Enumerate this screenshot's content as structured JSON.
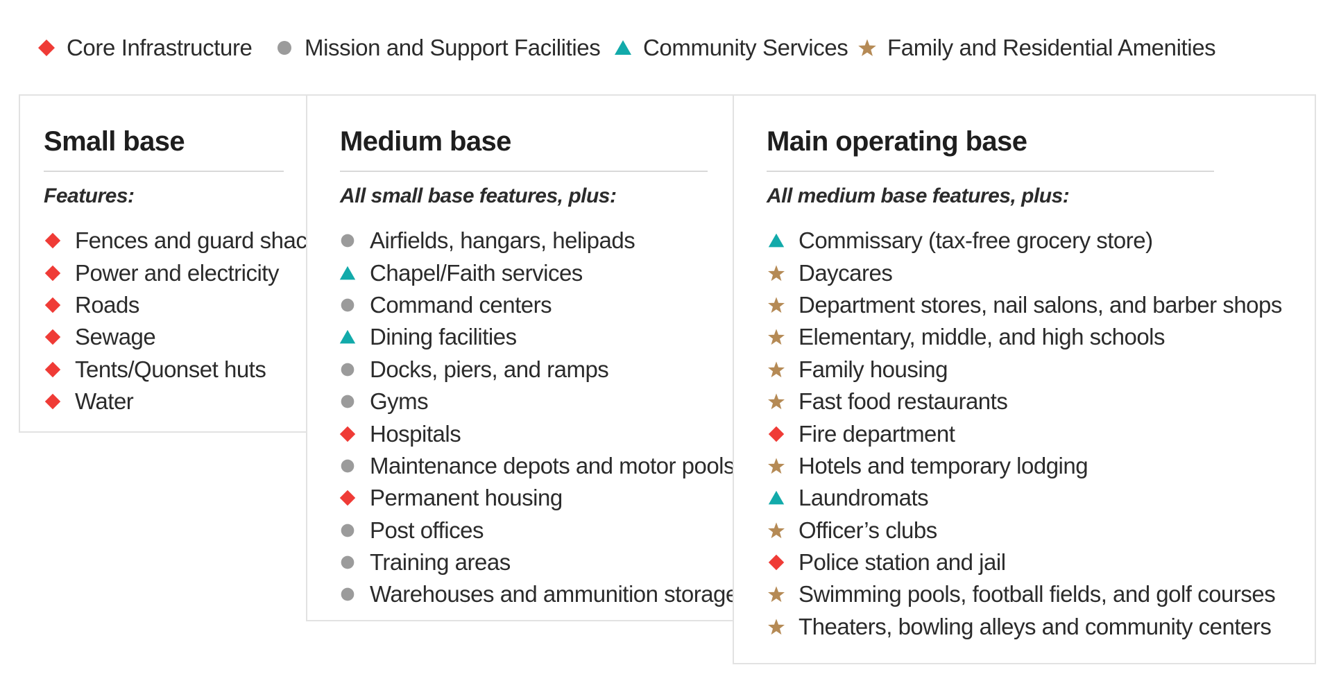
{
  "colors": {
    "core": "#ef3b36",
    "mission": "#9b9b9b",
    "community": "#12aaaa",
    "family": "#b58a55"
  },
  "legend": [
    {
      "label": "Core Infrastructure",
      "marker": "diamond",
      "category": "core"
    },
    {
      "label": "Mission and Support Facilities",
      "marker": "circle",
      "category": "mission"
    },
    {
      "label": "Community Services",
      "marker": "triangle",
      "category": "community"
    },
    {
      "label": "Family and Residential Amenities",
      "marker": "star",
      "category": "family"
    }
  ],
  "panels": {
    "small": {
      "title": "Small base",
      "subtitle": "Features:",
      "items": [
        {
          "text": "Fences and guard shacks",
          "category": "core"
        },
        {
          "text": "Power and electricity",
          "category": "core"
        },
        {
          "text": "Roads",
          "category": "core"
        },
        {
          "text": "Sewage",
          "category": "core"
        },
        {
          "text": "Tents/Quonset huts",
          "category": "core"
        },
        {
          "text": "Water",
          "category": "core"
        }
      ]
    },
    "medium": {
      "title": "Medium base",
      "subtitle": "All small base features, plus:",
      "items": [
        {
          "text": "Airfields, hangars, helipads",
          "category": "mission"
        },
        {
          "text": "Chapel/Faith services",
          "category": "community"
        },
        {
          "text": "Command centers",
          "category": "mission"
        },
        {
          "text": "Dining facilities",
          "category": "community"
        },
        {
          "text": "Docks, piers, and ramps",
          "category": "mission"
        },
        {
          "text": "Gyms",
          "category": "mission"
        },
        {
          "text": "Hospitals",
          "category": "core"
        },
        {
          "text": "Maintenance depots and motor pools",
          "category": "mission"
        },
        {
          "text": "Permanent housing",
          "category": "core"
        },
        {
          "text": "Post offices",
          "category": "mission"
        },
        {
          "text": "Training areas",
          "category": "mission"
        },
        {
          "text": "Warehouses and ammunition storage",
          "category": "mission"
        }
      ]
    },
    "main": {
      "title": "Main operating base",
      "subtitle": "All medium base features, plus:",
      "items": [
        {
          "text": "Commissary (tax-free grocery store)",
          "category": "community"
        },
        {
          "text": "Daycares",
          "category": "family"
        },
        {
          "text": "Department stores, nail salons, and barber shops",
          "category": "family"
        },
        {
          "text": "Elementary, middle, and high schools",
          "category": "family"
        },
        {
          "text": "Family housing",
          "category": "family"
        },
        {
          "text": "Fast food restaurants",
          "category": "family"
        },
        {
          "text": "Fire department",
          "category": "core"
        },
        {
          "text": "Hotels and temporary lodging",
          "category": "family"
        },
        {
          "text": "Laundromats",
          "category": "community"
        },
        {
          "text": "Officer’s clubs",
          "category": "family"
        },
        {
          "text": "Police station and jail",
          "category": "core"
        },
        {
          "text": "Swimming pools, football fields, and golf courses",
          "category": "family"
        },
        {
          "text": "Theaters, bowling alleys and community centers",
          "category": "family"
        }
      ]
    }
  }
}
